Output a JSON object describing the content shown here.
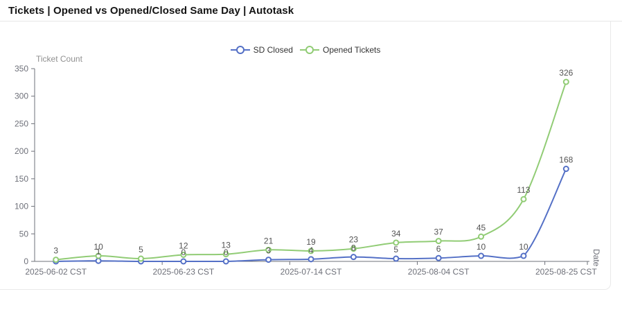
{
  "page": {
    "title": "Tickets | Opened vs Opened/Closed Same Day | Autotask"
  },
  "chart_data": {
    "type": "line",
    "smooth": true,
    "grid": false,
    "legend_position": "top",
    "y_axis_name": "Ticket Count",
    "x_axis_name": "Date",
    "ylim": [
      0,
      350
    ],
    "y_ticks": [
      0,
      50,
      100,
      150,
      200,
      250,
      300,
      350
    ],
    "x": [
      "2025-06-02",
      "2025-06-09",
      "2025-06-16",
      "2025-06-23",
      "2025-06-30",
      "2025-07-07",
      "2025-07-14",
      "2025-07-21",
      "2025-07-28",
      "2025-08-04",
      "2025-08-11",
      "2025-08-18",
      "2025-08-25"
    ],
    "x_tick_labels": [
      "2025-06-02 CST",
      "2025-06-23 CST",
      "2025-07-14 CST",
      "2025-08-04 CST",
      "2025-08-25 CST"
    ],
    "x_tick_label_indices": [
      0,
      3,
      6,
      9,
      12
    ],
    "series": [
      {
        "name": "SD Closed",
        "color": "#5470c6",
        "values": [
          0,
          1,
          0,
          0,
          0,
          3,
          4,
          8,
          5,
          6,
          10,
          10,
          168
        ],
        "point_labels": [
          "",
          "1",
          "",
          "0",
          "0",
          "3",
          "4",
          "8",
          "5",
          "6",
          "10",
          "10",
          "168"
        ]
      },
      {
        "name": "Opened Tickets",
        "color": "#91cc75",
        "values": [
          3,
          10,
          5,
          12,
          13,
          21,
          19,
          23,
          34,
          37,
          45,
          113,
          326
        ],
        "point_labels": [
          "3",
          "10",
          "5",
          "12",
          "13",
          "21",
          "19",
          "23",
          "34",
          "37",
          "45",
          "113",
          "326"
        ]
      }
    ],
    "colors": {
      "axis": "#6E7079",
      "tick_text": "#6E7079",
      "axis_name": "#909090",
      "point_label": "#525252"
    }
  }
}
